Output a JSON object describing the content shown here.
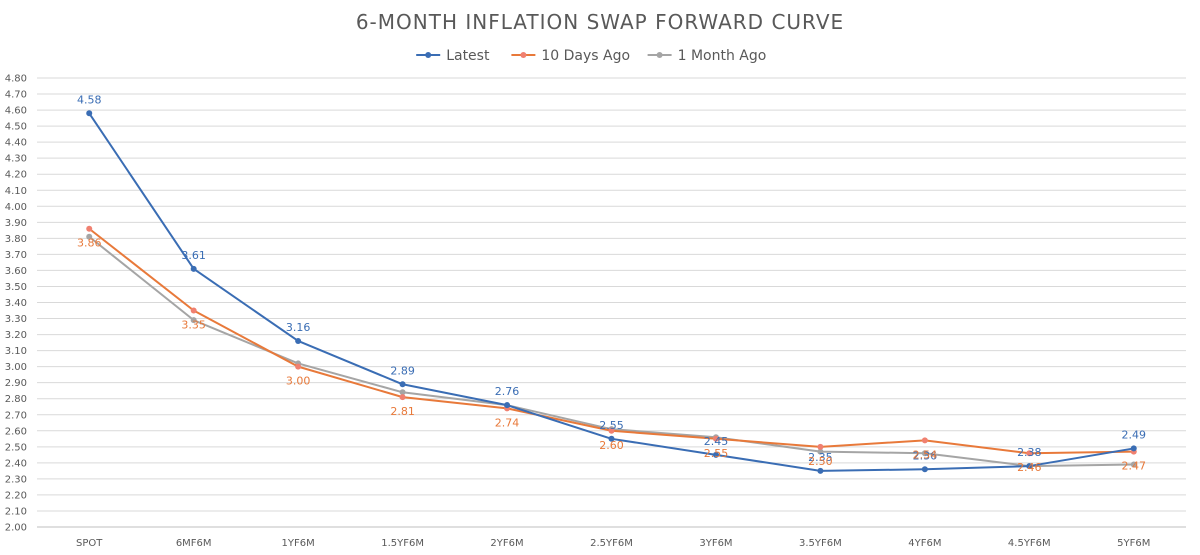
{
  "chart_data": {
    "type": "line",
    "title": "6-MONTH INFLATION SWAP FORWARD CURVE",
    "xlabel": "",
    "ylabel": "",
    "categories": [
      "SPOT",
      "6MF6M",
      "1YF6M",
      "1.5YF6M",
      "2YF6M",
      "2.5YF6M",
      "3YF6M",
      "3.5YF6M",
      "4YF6M",
      "4.5YF6M",
      "5YF6M"
    ],
    "ylim": [
      2.0,
      4.8
    ],
    "ytick_step": 0.1,
    "grid": true,
    "legend_position": "top-center",
    "series": [
      {
        "name": "Latest",
        "color": "#3a6db4",
        "values": [
          4.58,
          3.61,
          3.16,
          2.89,
          2.76,
          2.55,
          2.45,
          2.35,
          2.36,
          2.38,
          2.49
        ],
        "labels": [
          "4.58",
          "3.61",
          "3.16",
          "2.89",
          "2.76",
          "2.55",
          "2.45",
          "2.35",
          "2.36",
          "2.38",
          "2.49"
        ],
        "label_position": "above"
      },
      {
        "name": "10 Days Ago",
        "color": "#e8793a",
        "marker_color": "#f08070",
        "values": [
          3.86,
          3.35,
          3.0,
          2.81,
          2.74,
          2.6,
          2.55,
          2.5,
          2.54,
          2.46,
          2.47
        ],
        "labels": [
          "3.86",
          "3.35",
          "3.00",
          "2.81",
          "2.74",
          "2.60",
          "2.55",
          "2.50",
          "2.54",
          "2.46",
          "2.47"
        ],
        "label_position": "below"
      },
      {
        "name": "1 Month Ago",
        "color": "#a5a5a5",
        "values": [
          3.81,
          3.29,
          3.02,
          2.84,
          2.76,
          2.61,
          2.56,
          2.47,
          2.46,
          2.38,
          2.39
        ],
        "labels": [],
        "label_position": "none"
      }
    ]
  }
}
